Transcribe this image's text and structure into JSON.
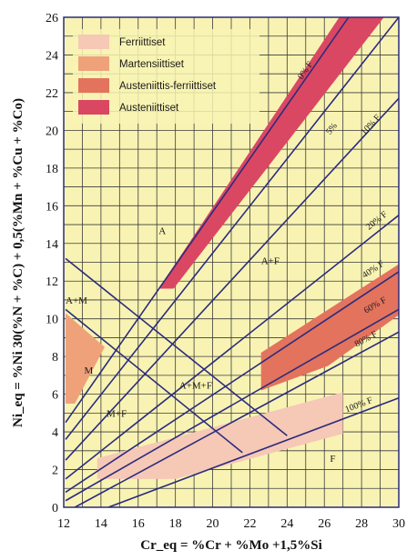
{
  "chart_data": {
    "type": "line",
    "xlabel": "Cr_eq = %Cr + %Mo +1,5%Si",
    "ylabel": "Ni_eq = %Ni 30(%N + %C) + 0,5(%Mn + %Cu + %Co)",
    "xlim": [
      12,
      30
    ],
    "ylim": [
      0,
      26
    ],
    "xticks": [
      "12",
      "14",
      "16",
      "18",
      "20",
      "22",
      "24",
      "26",
      "28",
      "30"
    ],
    "yticks": [
      "0",
      "2",
      "4",
      "6",
      "8",
      "10",
      "12",
      "14",
      "16",
      "18",
      "20",
      "22",
      "24",
      "26"
    ],
    "grid": true,
    "background_color": "#f8f3b3",
    "line_color": "#2b2c7d",
    "legend": {
      "placement": "top-left",
      "entries": [
        {
          "label": "Ferriittiset",
          "color": "#f6c8b6"
        },
        {
          "label": "Martensiittiset",
          "color": "#efa27a"
        },
        {
          "label": "Austeniittis-ferriittiset",
          "color": "#e3735d"
        },
        {
          "label": "Austeniittiset",
          "color": "#da4763"
        }
      ]
    },
    "ferrite_lines": [
      {
        "label": "0% F",
        "points": [
          [
            12.1,
            4.5
          ],
          [
            27.3,
            26
          ]
        ],
        "label_at": [
          25.1,
          23.1
        ]
      },
      {
        "label": "5%",
        "points": [
          [
            12.1,
            3.6
          ],
          [
            30,
            26
          ]
        ],
        "label_at": [
          26.5,
          20.0
        ]
      },
      {
        "label": "10% F",
        "points": [
          [
            12.1,
            2.5
          ],
          [
            30,
            21.7
          ]
        ],
        "label_at": [
          28.6,
          20.2
        ]
      },
      {
        "label": "20% F",
        "points": [
          [
            12.1,
            1.5
          ],
          [
            30,
            15.5
          ]
        ],
        "label_at": [
          28.9,
          15.1
        ]
      },
      {
        "label": "40% F",
        "points": [
          [
            12.1,
            0.8
          ],
          [
            30,
            12.5
          ]
        ],
        "label_at": [
          28.7,
          12.5
        ]
      },
      {
        "label": "60% F",
        "points": [
          [
            12.1,
            0.35
          ],
          [
            30,
            10.5
          ]
        ],
        "label_at": [
          28.8,
          10.6
        ]
      },
      {
        "label": "80% F",
        "points": [
          [
            12.6,
            0
          ],
          [
            30,
            9.3
          ]
        ],
        "label_at": [
          28.3,
          8.8
        ]
      },
      {
        "label": "100% F",
        "points": [
          [
            14.4,
            0
          ],
          [
            30,
            5.8
          ]
        ],
        "label_at": [
          27.9,
          5.3
        ]
      }
    ],
    "boundary_lines": [
      {
        "points": [
          [
            12.1,
            13.2
          ],
          [
            24,
            3.8
          ]
        ]
      },
      {
        "points": [
          [
            12.1,
            10.5
          ],
          [
            21.6,
            2.9
          ]
        ]
      }
    ],
    "regions": [
      {
        "name": "Austeniittiset",
        "color": "#da4763",
        "polygon": [
          [
            17.1,
            11.6
          ],
          [
            26.8,
            26
          ],
          [
            29.2,
            26
          ],
          [
            17.9,
            11.6
          ]
        ]
      },
      {
        "name": "Austeniittis-ferriittiset",
        "color": "#e3735d",
        "polygon": [
          [
            22.6,
            8.2
          ],
          [
            30,
            12.9
          ],
          [
            30,
            10.2
          ],
          [
            26.2,
            7.5
          ],
          [
            22.6,
            6.2
          ]
        ]
      },
      {
        "name": "Martensiittiset",
        "color": "#efa27a",
        "polygon": [
          [
            12.1,
            10.3
          ],
          [
            14.2,
            8.5
          ],
          [
            12.6,
            5.5
          ],
          [
            12.1,
            5.5
          ]
        ]
      },
      {
        "name": "Ferriittiset",
        "color": "#f6c8b6",
        "polygon": [
          [
            13.8,
            2.6
          ],
          [
            27,
            6.1
          ],
          [
            27,
            3.9
          ],
          [
            18,
            1.5
          ],
          [
            13.8,
            1.5
          ]
        ]
      }
    ],
    "region_labels": [
      {
        "text": "A",
        "at": [
          17.1,
          14.5
        ]
      },
      {
        "text": "A+F",
        "at": [
          22.6,
          12.9
        ]
      },
      {
        "text": "A+M",
        "at": [
          12.1,
          10.8
        ]
      },
      {
        "text": "M",
        "at": [
          13.1,
          7.1
        ]
      },
      {
        "text": "A+M+F",
        "at": [
          18.2,
          6.3
        ]
      },
      {
        "text": "M+F",
        "at": [
          14.3,
          4.8
        ]
      },
      {
        "text": "F",
        "at": [
          26.3,
          2.4
        ]
      }
    ]
  }
}
